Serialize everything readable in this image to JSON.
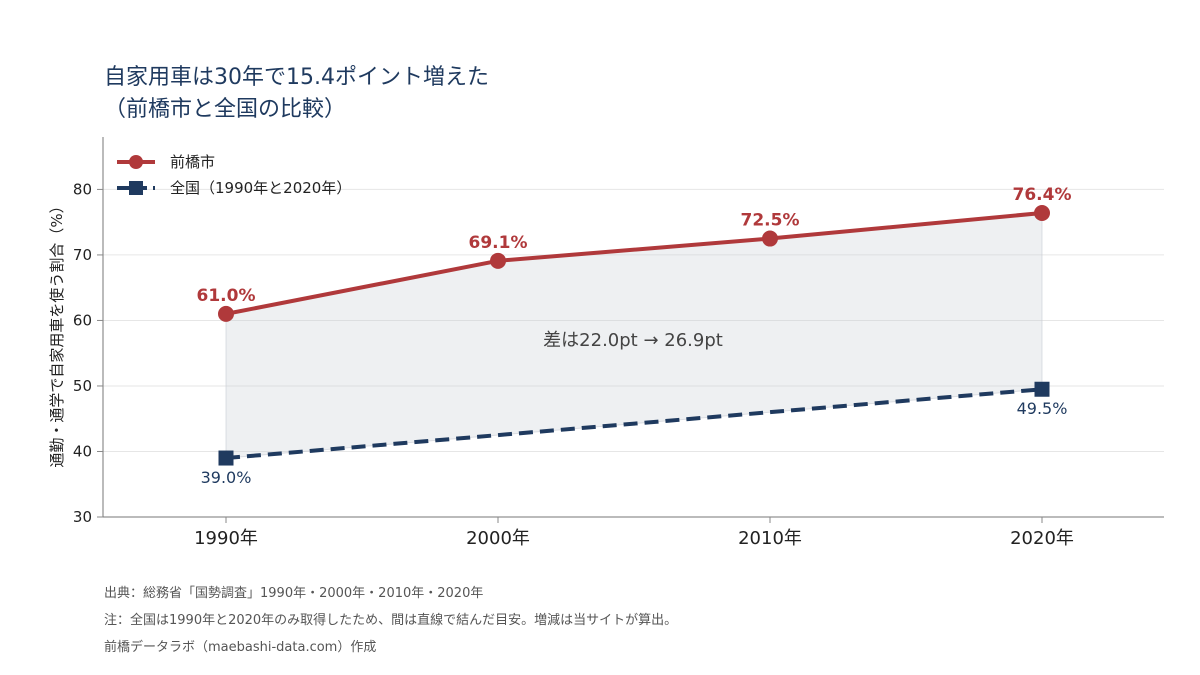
{
  "chart_data": {
    "type": "line",
    "title": "自家用車は30年で15.4ポイント増えた",
    "subtitle": "（前橋市と全国の比較）",
    "ylabel": "通勤・通学で自家用車を使う割合（%）",
    "xlabel": "",
    "ylim": [
      30,
      88
    ],
    "yticks": [
      30,
      40,
      50,
      60,
      70,
      80
    ],
    "categories": [
      "1990年",
      "2000年",
      "2010年",
      "2020年"
    ],
    "series": [
      {
        "name": "前橋市",
        "color": "#b0393b",
        "style": "solid",
        "marker": "circle",
        "values": [
          61.0,
          69.1,
          72.5,
          76.4
        ],
        "labels": [
          "61.0%",
          "69.1%",
          "72.5%",
          "76.4%"
        ]
      },
      {
        "name": "全国（1990年と2020年）",
        "color": "#1f3a5f",
        "style": "dashed",
        "marker": "square",
        "points": [
          {
            "x": "1990年",
            "y": 39.0
          },
          {
            "x": "2020年",
            "y": 49.5
          }
        ],
        "labels": [
          "39.0%",
          "49.5%"
        ]
      }
    ],
    "annotation": "差は22.0pt → 26.9pt",
    "legend_position": "top-left",
    "grid": true,
    "fill_between": true
  },
  "notes": [
    "出典：総務省「国勢調査」1990年・2000年・2010年・2020年",
    "注：全国は1990年と2020年のみ取得したため、間は直線で結んだ目安。増減は当サイトが算出。",
    "前橋データラボ（maebashi-data.com）作成"
  ]
}
